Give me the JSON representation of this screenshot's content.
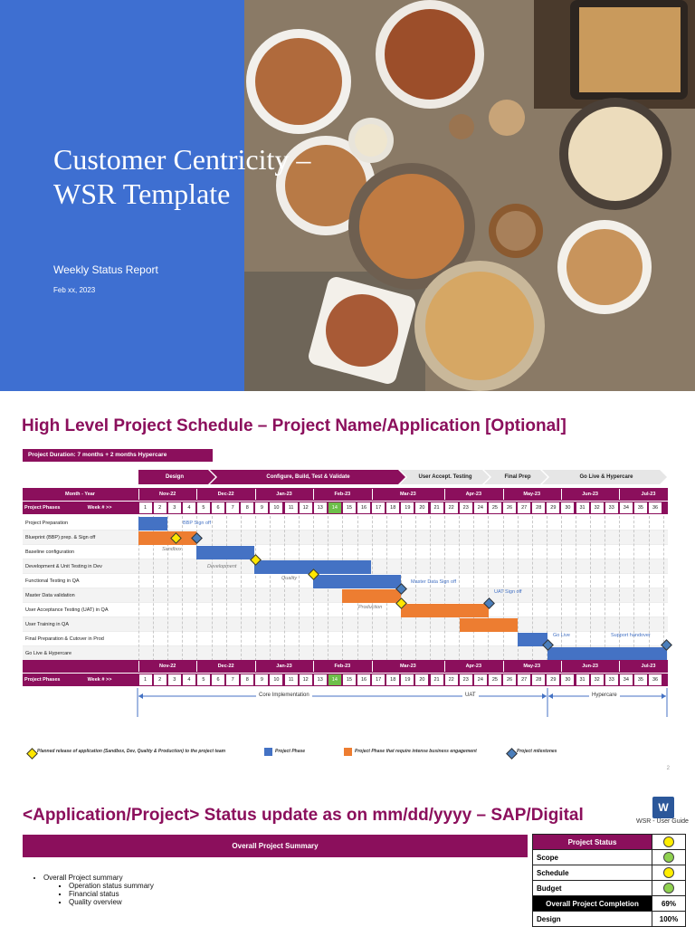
{
  "cover": {
    "title": "Customer Centricity – WSR Template",
    "subtitle": "Weekly Status Report",
    "date": "Feb xx, 2023",
    "colors": {
      "blue_panel": "#3e6fd1"
    }
  },
  "schedule": {
    "heading": "High Level Project Schedule – Project Name/Application [Optional]",
    "duration": "Project Duration: 7 months + 2 months Hypercare",
    "phases": [
      "Design",
      "Configure, Build, Test & Validate",
      "User Accept. Testing",
      "Final Prep",
      "Go Live & Hypercare"
    ],
    "month_year_label": "Month - Year",
    "phases_label": "Project Phases",
    "week_label": "Week # >>",
    "months": [
      "Nov-22",
      "Dec-22",
      "Jan-23",
      "Feb-23",
      "Mar-23",
      "Apr-23",
      "May-23",
      "Jun-23",
      "Jul-23"
    ],
    "weeks": [
      "1",
      "2",
      "3",
      "4",
      "5",
      "6",
      "7",
      "8",
      "9",
      "10",
      "11",
      "12",
      "13",
      "14",
      "15",
      "16",
      "17",
      "18",
      "19",
      "20",
      "21",
      "22",
      "23",
      "24",
      "25",
      "26",
      "27",
      "28",
      "29",
      "30",
      "31",
      "32",
      "33",
      "34",
      "35",
      "36"
    ],
    "current_week": "14",
    "tasks": [
      "Project Preparation",
      "Blueprint (BBP) prep. & Sign off",
      "Baseline configuration",
      "Development & Unit Testing in Dev",
      "Functional Testing in QA",
      "Master Data validation",
      "User Acceptance Testing (UAT) in QA",
      "User Training in QA",
      "Final Preparation & Cutover in Prod",
      "Go Live & Hypercare"
    ],
    "annotations": {
      "bbp_sign_off": "BBP Sign off",
      "sandbox": "Sandbox",
      "development": "Development",
      "quality": "Quality",
      "master_data_sign_off": "Master Data Sign off",
      "uat_sign_off": "UAT Sign off",
      "production": "Production",
      "go_live": "Go Live",
      "support_handover": "Support handover"
    },
    "brackets": {
      "core": "Core Implementation",
      "uat": "UAT",
      "hypercare": "Hypercare"
    },
    "legend": {
      "planned_release": "Planned release of application (Sandbox, Dev, Quality & Production) to the project team",
      "project_phase": "Project Phase",
      "business_phase": "Project Phase that require intense business engagement",
      "milestones": "Project milestones"
    },
    "page_number": "2",
    "colors": {
      "brand": "#8b0f5c",
      "phase_blue": "#4472c4",
      "phase_orange": "#ed7d31",
      "milestone_yellow": "#ffe600",
      "milestone_blue": "#4a7ebb"
    }
  },
  "status_update": {
    "heading": "<Application/Project> Status update as on mm/dd/yyyy – SAP/Digital",
    "word_icon_letter": "W",
    "user_guide_label": "WSR - User Guide",
    "summary_title": "Overall Project Summary",
    "bullets": {
      "main": "Overall Project summary",
      "sub": [
        "Operation status summary",
        "Financial status",
        "Quality overview"
      ]
    },
    "status_table": {
      "header": "Project Status",
      "rows": [
        {
          "label": "Scope",
          "status": "green"
        },
        {
          "label": "Schedule",
          "status": "yellow"
        },
        {
          "label": "Budget",
          "status": "green"
        }
      ],
      "completion_label": "Overall Project Completion",
      "completion_value": "69%",
      "design_label": "Design",
      "design_value": "100%"
    },
    "colors": {
      "green": "#8fd14f",
      "yellow": "#ffee00"
    }
  }
}
